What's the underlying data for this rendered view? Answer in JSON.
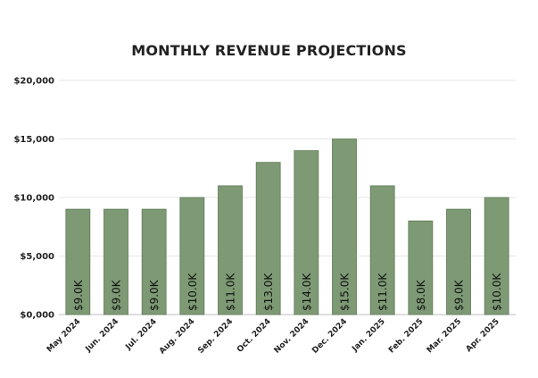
{
  "chart_data": {
    "type": "bar",
    "title": "MONTHLY REVENUE PROJECTIONS",
    "xlabel": "",
    "ylabel": "",
    "categories": [
      "May 2024",
      "Jun. 2024",
      "Jul. 2024",
      "Aug. 2024",
      "Sep. 2024",
      "Oct. 2024",
      "Nov. 2024",
      "Dec. 2024",
      "Jan. 2025",
      "Feb. 2025",
      "Mar. 2025",
      "Apr. 2025"
    ],
    "values": [
      9000,
      9000,
      9000,
      10000,
      11000,
      13000,
      14000,
      15000,
      11000,
      8000,
      9000,
      10000
    ],
    "data_labels": [
      "$9.0K",
      "$9.0K",
      "$9.0K",
      "$10.0K",
      "$11.0K",
      "$13.0K",
      "$14.0K",
      "$15.0K",
      "$11.0K",
      "$8.0K",
      "$9.0K",
      "$10.0K"
    ],
    "ylim": [
      0,
      20000
    ],
    "yticks": [
      0,
      5000,
      10000,
      15000,
      20000
    ],
    "ytick_labels": [
      "$0,000",
      "$5,000",
      "$10,000",
      "$15,000",
      "$20,000"
    ],
    "grid": true,
    "bar_color": "#7d9a74",
    "bar_edge_color": "#5f7a57"
  }
}
